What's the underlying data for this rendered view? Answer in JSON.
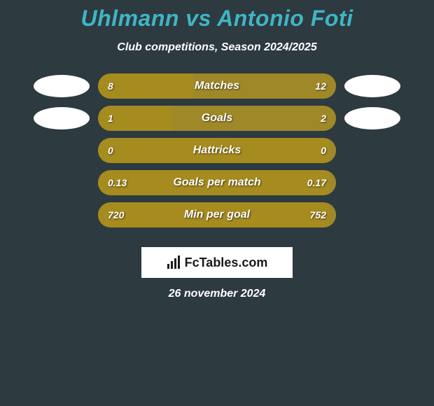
{
  "title": "Uhlmann vs Antonio Foti",
  "subtitle": "Club competitions, Season 2024/2025",
  "date": "26 november 2024",
  "logo_text": "FcTables.com",
  "colors": {
    "background": "#2d3a40",
    "title": "#3eb6c4",
    "text": "#ffffff",
    "bar_left": "#a68b1f",
    "bar_right": "#9e8828",
    "track": "#a68b1f",
    "avatar": "#ffffff",
    "logo_bg": "#ffffff"
  },
  "stats": [
    {
      "label": "Matches",
      "left_value": "8",
      "right_value": "12",
      "left_pct": 40,
      "right_pct": 60,
      "show_avatars": true
    },
    {
      "label": "Goals",
      "left_value": "1",
      "right_value": "2",
      "left_pct": 31,
      "right_pct": 69,
      "show_avatars": true
    },
    {
      "label": "Hattricks",
      "left_value": "0",
      "right_value": "0",
      "left_pct": 3,
      "right_pct": 3,
      "show_avatars": false
    },
    {
      "label": "Goals per match",
      "left_value": "0.13",
      "right_value": "0.17",
      "left_pct": 3,
      "right_pct": 3,
      "show_avatars": false
    },
    {
      "label": "Min per goal",
      "left_value": "720",
      "right_value": "752",
      "left_pct": 3,
      "right_pct": 3,
      "show_avatars": false
    }
  ]
}
